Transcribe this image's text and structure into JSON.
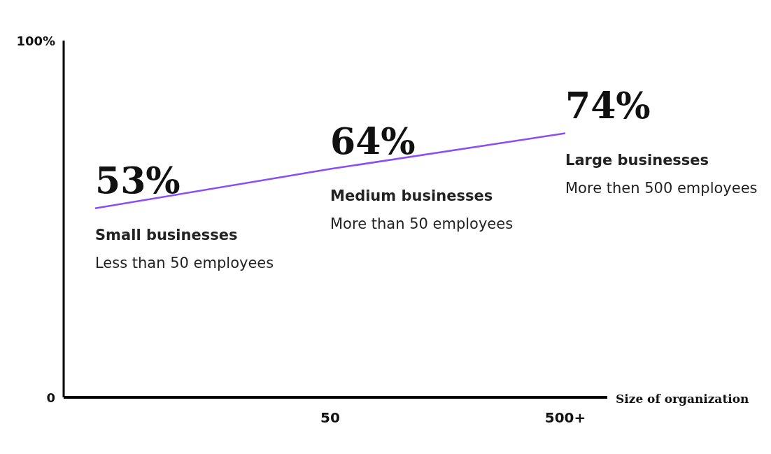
{
  "chart_data": {
    "type": "line",
    "xlabel": "Size of organization",
    "categories": [
      null,
      "50",
      "500+"
    ],
    "values": [
      53,
      64,
      74
    ],
    "value_labels": [
      "53%",
      "64%",
      "74%"
    ],
    "color": "#8c4ef2",
    "ylim": [
      0,
      100
    ],
    "yticks": [
      {
        "value": 0,
        "label": "0"
      },
      {
        "value": 100,
        "label": "100%"
      }
    ],
    "annotations": [
      "Small businesses",
      "Less than 50 employees",
      "Medium businesses",
      "More than 50 employees",
      "Large businesses",
      "More then 500 employees"
    ]
  }
}
